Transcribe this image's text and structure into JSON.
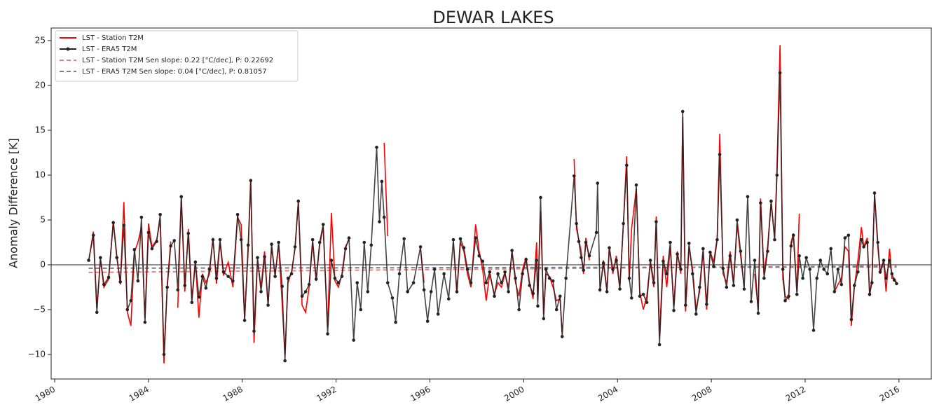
{
  "chart_data": {
    "type": "line",
    "title": "DEWAR LAKES",
    "y_label": "Anomaly Difference [K]",
    "xlim": [
      1979.85,
      2017.38
    ],
    "ylim": [
      -12.73,
      26.4
    ],
    "xticks": [
      1980,
      1984,
      1988,
      1992,
      1996,
      2000,
      2004,
      2008,
      2012,
      2016
    ],
    "yticks": [
      {
        "value": -10,
        "label": "−10"
      },
      {
        "value": -5,
        "label": "−5"
      },
      0,
      5,
      10,
      15,
      20,
      25
    ],
    "hline": 0,
    "legend": "upper left",
    "x": [
      1981.45,
      1981.65,
      1981.8,
      1981.95,
      1982.1,
      1982.3,
      1982.5,
      1982.65,
      1982.8,
      1982.95,
      1983.1,
      1983.25,
      1983.4,
      1983.55,
      1983.7,
      1983.85,
      1984.0,
      1984.15,
      1984.35,
      1984.5,
      1984.66,
      1984.8,
      1984.95,
      1985.1,
      1985.25,
      1985.4,
      1985.55,
      1985.7,
      1985.85,
      1986.0,
      1986.15,
      1986.3,
      1986.45,
      1986.6,
      1986.75,
      1986.9,
      1987.05,
      1987.2,
      1987.4,
      1987.6,
      1987.8,
      1987.95,
      1988.1,
      1988.25,
      1988.36,
      1988.5,
      1988.65,
      1988.8,
      1988.95,
      1989.1,
      1989.25,
      1989.4,
      1989.55,
      1989.7,
      1989.82,
      1989.95,
      1990.1,
      1990.25,
      1990.39,
      1990.55,
      1990.7,
      1990.85,
      1991.0,
      1991.15,
      1991.3,
      1991.45,
      1991.64,
      1991.8,
      1991.95,
      1992.1,
      1992.25,
      1992.4,
      1992.55,
      1992.75,
      1992.9,
      1993.05,
      1993.2,
      1993.35,
      1993.5,
      1993.73,
      1993.85,
      1993.95,
      1994.05,
      1994.2,
      1994.4,
      1994.54,
      1994.7,
      1994.9,
      1995.05,
      1995.3,
      1995.6,
      1995.75,
      1995.9,
      1996.05,
      1996.2,
      1996.35,
      1996.6,
      1996.8,
      1997.0,
      1997.15,
      1997.3,
      1997.45,
      1997.6,
      1997.75,
      1997.95,
      1998.1,
      1998.25,
      1998.4,
      1998.55,
      1998.75,
      1998.9,
      1999.05,
      1999.2,
      1999.35,
      1999.5,
      1999.65,
      1999.8,
      1999.95,
      2000.1,
      2000.25,
      2000.4,
      2000.55,
      2000.6,
      2000.72,
      2000.85,
      2000.95,
      2001.1,
      2001.25,
      2001.4,
      2001.55,
      2001.64,
      2001.8,
      2002.15,
      2002.25,
      2002.35,
      2002.45,
      2002.55,
      2002.65,
      2002.8,
      2003.1,
      2003.15,
      2003.25,
      2003.4,
      2003.55,
      2003.65,
      2003.8,
      2003.95,
      2004.1,
      2004.25,
      2004.39,
      2004.5,
      2004.6,
      2004.8,
      2004.95,
      2005.1,
      2005.25,
      2005.4,
      2005.55,
      2005.65,
      2005.79,
      2005.95,
      2006.1,
      2006.25,
      2006.4,
      2006.55,
      2006.7,
      2006.78,
      2006.9,
      2007.05,
      2007.2,
      2007.35,
      2007.5,
      2007.65,
      2007.8,
      2007.95,
      2008.1,
      2008.25,
      2008.36,
      2008.5,
      2008.65,
      2008.8,
      2008.95,
      2009.1,
      2009.25,
      2009.4,
      2009.55,
      2009.7,
      2009.85,
      2010.0,
      2010.1,
      2010.25,
      2010.4,
      2010.55,
      2010.7,
      2010.8,
      2010.93,
      2011.05,
      2011.15,
      2011.3,
      2011.4,
      2011.5,
      2011.65,
      2011.75,
      2011.9,
      2012.05,
      2012.2,
      2012.36,
      2012.5,
      2012.65,
      2012.8,
      2012.95,
      2013.1,
      2013.25,
      2013.4,
      2013.55,
      2013.7,
      2013.85,
      2013.97,
      2014.1,
      2014.25,
      2014.4,
      2014.5,
      2014.65,
      2014.75,
      2014.85,
      2014.96,
      2015.1,
      2015.2,
      2015.35,
      2015.45,
      2015.6,
      2015.7,
      2015.8,
      2015.9
    ],
    "series": [
      {
        "name": "LST - Station T2M",
        "color": "#ff0000",
        "style": "solid",
        "markers": false,
        "values": [
          0.4,
          3.7,
          -4.8,
          0.6,
          -2.5,
          -1.6,
          4.9,
          1.0,
          -2.2,
          7.0,
          -5.3,
          -6.8,
          1.4,
          2.5,
          4.2,
          -6.0,
          4.6,
          2.0,
          2.8,
          5.0,
          -11.0,
          -2.2,
          2.6,
          null,
          -4.8,
          7.5,
          -3.0,
          4.0,
          -3.8,
          0.5,
          -5.9,
          -1.0,
          -2.0,
          -1.0,
          3.0,
          -2.1,
          2.5,
          -1.2,
          0.3,
          -2.5,
          5.3,
          4.5,
          -6.0,
          1.5,
          9.5,
          -8.7,
          0.5,
          -2.5,
          1.5,
          -4.5,
          2.0,
          -1.2,
          2.2,
          -4.3,
          -10.0,
          -2.0,
          -0.8,
          1.8,
          7.0,
          -4.5,
          -5.3,
          -2.5,
          2.5,
          -1.8,
          2.2,
          4.2,
          -7.0,
          5.8,
          -1.8,
          -2.5,
          -1.0,
          2.0,
          2.8,
          null,
          null,
          null,
          null,
          null,
          null,
          null,
          null,
          null,
          13.6,
          3.2,
          null,
          null,
          null,
          null,
          null,
          null,
          1.8,
          -2.0,
          null,
          null,
          null,
          -1.5,
          null,
          null,
          2.5,
          -3.2,
          2.5,
          1.5,
          -1.0,
          -2.5,
          4.5,
          1.5,
          -0.5,
          -4.0,
          -1.0,
          -3.3,
          -2.0,
          -2.5,
          -1.0,
          -2.5,
          1.5,
          -2.0,
          -3.5,
          -0.5,
          0.8,
          -2.0,
          -3.8,
          2.5,
          -4.0,
          6.0,
          -5.5,
          -1.0,
          -1.3,
          -2.5,
          -4.0,
          -3.8,
          -7.5,
          null,
          11.8,
          4.0,
          2.8,
          1.5,
          -1.0,
          3.0,
          0.5,
          null,
          null,
          -3.0,
          0.5,
          -2.8,
          2.0,
          -1.0,
          1.0,
          -2.5,
          4.5,
          12.1,
          -1.8,
          4.0,
          8.5,
          -3.0,
          -5.0,
          -3.5,
          0.3,
          -2.5,
          5.4,
          -8.0,
          1.0,
          -2.5,
          2.0,
          -4.5,
          1.5,
          -1.0,
          16.5,
          -5.2,
          2.0,
          -0.5,
          -5.0,
          -3.0,
          1.5,
          -5.0,
          1.5,
          0.3,
          3.0,
          14.6,
          -1.0,
          -2.0,
          1.5,
          -2.0,
          4.5,
          1.0,
          -2.5,
          null,
          null,
          -1.0,
          -5.0,
          7.4,
          -1.0,
          2.0,
          7.0,
          3.0,
          10.8,
          24.5,
          -1.6,
          -3.5,
          -3.8,
          2.5,
          3.5,
          -3.0,
          5.7,
          null,
          null,
          null,
          null,
          null,
          null,
          null,
          null,
          null,
          -3.0,
          -2.2,
          -1.5,
          2.0,
          1.5,
          -6.8,
          -2.5,
          0.5,
          4.2,
          2.0,
          3.0,
          -3.5,
          -1.5,
          7.8,
          2.0,
          -1.0,
          0.5,
          -3.0,
          1.8,
          -1.5,
          -1.5,
          -2.0
        ]
      },
      {
        "name": "LST - ERA5 T2M",
        "color": "#222222",
        "style": "solid",
        "markers": true,
        "values": [
          0.5,
          3.3,
          -5.3,
          0.8,
          -2.2,
          -1.4,
          4.7,
          0.8,
          -1.9,
          4.4,
          -5.0,
          -4.0,
          1.7,
          -1.8,
          5.3,
          -6.4,
          3.6,
          1.8,
          2.6,
          5.6,
          -10.0,
          -2.5,
          2.1,
          2.7,
          -2.8,
          7.6,
          -2.3,
          3.5,
          -4.2,
          0.3,
          -3.6,
          -1.3,
          -2.6,
          -0.5,
          2.8,
          -1.5,
          2.8,
          -0.8,
          -1.3,
          -1.8,
          5.6,
          2.8,
          -6.2,
          2.2,
          9.4,
          -7.4,
          0.8,
          -3.0,
          0.9,
          -4.5,
          2.3,
          -1.3,
          2.5,
          -2.4,
          -10.7,
          -1.5,
          -1.0,
          2.0,
          7.1,
          -3.5,
          -3.0,
          -2.2,
          2.8,
          -1.6,
          2.5,
          4.5,
          -7.7,
          0.5,
          -1.5,
          -2.0,
          -1.3,
          1.8,
          3.0,
          -8.4,
          -2.0,
          -5.0,
          2.5,
          -3.0,
          2.2,
          13.1,
          4.8,
          9.3,
          5.3,
          -2.0,
          -3.7,
          -6.4,
          -1.0,
          2.9,
          -3.0,
          -2.0,
          2.0,
          -2.8,
          -6.3,
          -3.0,
          -0.5,
          -5.5,
          -1.0,
          -3.8,
          2.8,
          -3.0,
          2.9,
          1.9,
          -0.5,
          -2.0,
          3.0,
          1.0,
          0.4,
          -2.0,
          -0.8,
          -3.5,
          -1.0,
          -2.0,
          -0.8,
          -3.0,
          1.6,
          -1.5,
          -5.0,
          -1.0,
          0.6,
          -2.3,
          -3.2,
          0.5,
          -4.6,
          7.5,
          -6.0,
          -0.5,
          -1.5,
          -1.8,
          -5.0,
          -3.5,
          -8.0,
          -1.5,
          9.9,
          4.6,
          2.6,
          0.8,
          -0.6,
          2.5,
          1.0,
          3.6,
          9.1,
          -2.8,
          0.2,
          -3.0,
          1.9,
          -0.5,
          0.5,
          -2.7,
          4.6,
          11.1,
          -1.5,
          -3.7,
          8.9,
          -3.5,
          -3.3,
          -4.2,
          0.5,
          -2.0,
          4.8,
          -8.9,
          0.4,
          -1.0,
          2.5,
          -5.1,
          1.2,
          -0.5,
          17.1,
          -4.5,
          2.4,
          -1.0,
          -5.5,
          -2.5,
          1.8,
          -4.4,
          1.4,
          -0.2,
          2.8,
          12.3,
          -0.4,
          -2.5,
          1.0,
          -2.3,
          5.0,
          1.5,
          -2.7,
          7.6,
          -4.1,
          0.5,
          -5.4,
          6.9,
          -1.5,
          1.5,
          7.1,
          2.8,
          10.0,
          21.4,
          -0.5,
          -4.0,
          -3.5,
          2.1,
          3.3,
          -3.3,
          1.0,
          -1.5,
          0.8,
          -0.5,
          -7.3,
          -1.5,
          0.5,
          -0.5,
          -1.0,
          1.8,
          -3.0,
          -0.5,
          -2.2,
          3.0,
          3.3,
          -6.1,
          -2.3,
          -0.8,
          2.8,
          2.0,
          2.5,
          -3.3,
          -2.0,
          8.0,
          2.5,
          -0.8,
          0.5,
          -1.5,
          0.5,
          -1.0,
          -1.7,
          -2.1
        ]
      },
      {
        "name": "LST - Station T2M  Sen slope: 0.22 [°C/dec], P: 0.22692",
        "color": "#f08080",
        "style": "dashed",
        "markers": false,
        "x": [
          1981.45,
          2015.9
        ],
        "values": [
          -0.85,
          -0.1
        ]
      },
      {
        "name": "LST - ERA5 T2M Sen slope: 0.04 [°C/dec], P: 0.81057",
        "color": "#708090",
        "style": "dashed",
        "markers": false,
        "x": [
          1981.45,
          2015.9
        ],
        "values": [
          -0.38,
          -0.24
        ]
      }
    ]
  }
}
